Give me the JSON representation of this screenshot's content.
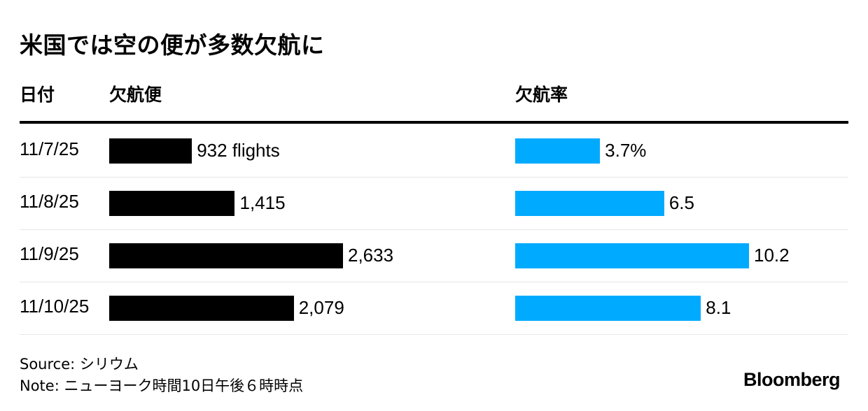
{
  "title": "米国では空の便が多数欠航に",
  "headers": {
    "date": "日付",
    "flights": "欠航便",
    "rate": "欠航率"
  },
  "chart_data": {
    "type": "bar",
    "orientation": "horizontal",
    "title": "米国では空の便が多数欠航に",
    "categories": [
      "11/7/25",
      "11/8/25",
      "11/9/25",
      "11/10/25"
    ],
    "series": [
      {
        "name": "欠航便",
        "values": [
          932,
          1415,
          2633,
          2079
        ],
        "labels": [
          "932 flights",
          "1,415",
          "2,633",
          "2,079"
        ],
        "color": "#000000"
      },
      {
        "name": "欠航率",
        "values": [
          3.7,
          6.5,
          10.2,
          8.1
        ],
        "labels": [
          "3.7%",
          "6.5",
          "10.2",
          "8.1"
        ],
        "color": "#00aaff"
      }
    ],
    "grid": false,
    "legend": "none"
  },
  "footer": {
    "source": "Source: シリウム",
    "note": "Note: ニューヨーク時間10日午後６時時点"
  },
  "brand": {
    "logo_text": "Bloomberg"
  }
}
